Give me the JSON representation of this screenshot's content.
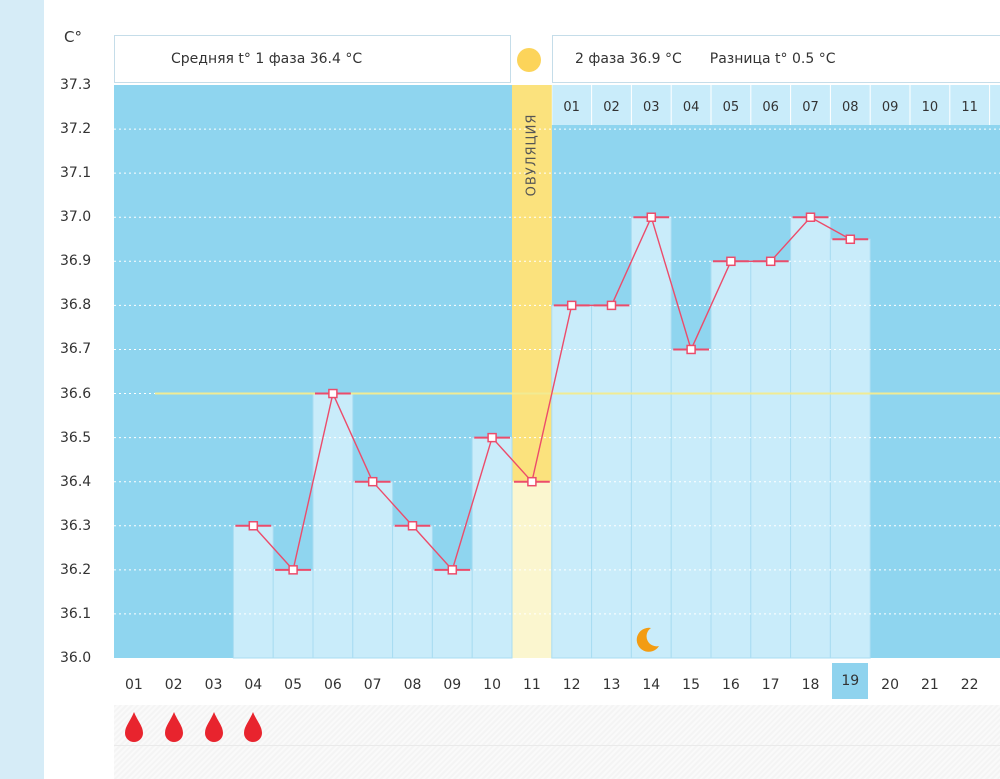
{
  "unit_label": "C°",
  "header": {
    "phase1_text": "Средняя t° 1 фаза 36.4 °С",
    "phase2_text": "2 фаза 36.9 °С",
    "diff_text": "Разница t° 0.5 °С"
  },
  "ovulation_label": "ОВУЛЯЦИЯ",
  "chart_data": {
    "type": "line",
    "title": "",
    "xlabel": "",
    "ylabel": "C°",
    "ylim": [
      36.0,
      37.3
    ],
    "y_ticks": [
      "37.3",
      "37.2",
      "37.1",
      "37.0",
      "36.9",
      "36.8",
      "36.7",
      "36.6",
      "36.5",
      "36.4",
      "36.3",
      "36.2",
      "36.1",
      "36.0"
    ],
    "x": [
      "01",
      "02",
      "03",
      "04",
      "05",
      "06",
      "07",
      "08",
      "09",
      "10",
      "11",
      "12",
      "13",
      "14",
      "15",
      "16",
      "17",
      "18",
      "19",
      "20",
      "21",
      "22"
    ],
    "temperatures": [
      null,
      null,
      null,
      36.3,
      36.2,
      36.6,
      36.4,
      36.3,
      36.2,
      36.5,
      36.4,
      36.8,
      36.8,
      37.0,
      36.7,
      36.9,
      36.9,
      37.0,
      36.95,
      null,
      null,
      null
    ],
    "current_day": "19",
    "ovulation_day": "11",
    "coverline": 36.6,
    "phase2_days": [
      "01",
      "02",
      "03",
      "04",
      "05",
      "06",
      "07",
      "08",
      "09",
      "10",
      "11"
    ],
    "menstruation_days": [
      "01",
      "02",
      "03",
      "04"
    ],
    "markers": [
      {
        "day": "14",
        "icon": "moon-icon"
      }
    ]
  },
  "colors": {
    "phase1_bg": "#8fd5ef",
    "phase2_bg": "#8fd5ef",
    "bar_fill": "#c9ecfa",
    "ovulation": "#fbe27d",
    "line": "#ec4c6b",
    "coverline": "#f1eb93",
    "drop": "#e8242e",
    "moon": "#f39c12"
  }
}
